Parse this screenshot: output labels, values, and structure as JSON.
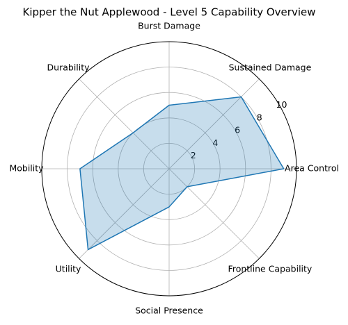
{
  "chart_data": {
    "type": "radar",
    "title": "Kipper the Nut Applewood - Level 5 Capability Overview",
    "categories": [
      "Area Control",
      "Sustained Damage",
      "Burst Damage",
      "Durability",
      "Mobility",
      "Utility",
      "Social Presence",
      "Frontline Capability"
    ],
    "values": [
      9,
      8,
      5,
      4,
      7,
      9,
      3,
      2
    ],
    "color": "#1f77b4",
    "rlim": [
      0,
      10
    ],
    "rticks": [
      2,
      4,
      6,
      8,
      10
    ],
    "grid": true
  }
}
